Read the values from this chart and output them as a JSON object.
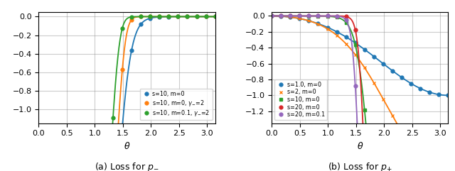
{
  "xlim": [
    0.0,
    3.14159
  ],
  "ylim_a": [
    -1.15,
    0.05
  ],
  "ylim_b": [
    -1.35,
    0.05
  ],
  "xticks": [
    0.0,
    0.5,
    1.0,
    1.5,
    2.0,
    2.5,
    3.0
  ],
  "configs_a": [
    {
      "s": 10,
      "m": 0.0,
      "gamma": 0,
      "color": "#1f77b4",
      "marker": "o",
      "label": "s=10, m=0"
    },
    {
      "s": 10,
      "m": 0.0,
      "gamma": 2,
      "color": "#ff7f0e",
      "marker": "o",
      "label": "s=10, m=0, $\\gamma_{-}$=2"
    },
    {
      "s": 10,
      "m": 0.1,
      "gamma": 2,
      "color": "#2ca02c",
      "marker": "o",
      "label": "s=10, m=0.1, $\\gamma_{-}$=2"
    }
  ],
  "configs_b": [
    {
      "s": 1.0,
      "m": 0.0,
      "color": "#1f77b4",
      "marker": "o",
      "label": "s=1.0, m=0"
    },
    {
      "s": 2.0,
      "m": 0.0,
      "color": "#ff7f0e",
      "marker": "x",
      "label": "s=2, m=0"
    },
    {
      "s": 10.0,
      "m": 0.0,
      "color": "#2ca02c",
      "marker": "s",
      "label": "s=10, m=0"
    },
    {
      "s": 20.0,
      "m": 0.0,
      "color": "#d62728",
      "marker": "o",
      "label": "s=20, m=0"
    },
    {
      "s": 20.0,
      "m": 0.1,
      "color": "#9467bd",
      "marker": "o",
      "label": "s=20, m=0.1"
    }
  ],
  "n_dots": 20,
  "n_line": 300,
  "title_a": "(a) Loss for $p_{-}$",
  "title_b": "(b) Loss for $p_{+}$",
  "xlabel": "$\\theta$"
}
